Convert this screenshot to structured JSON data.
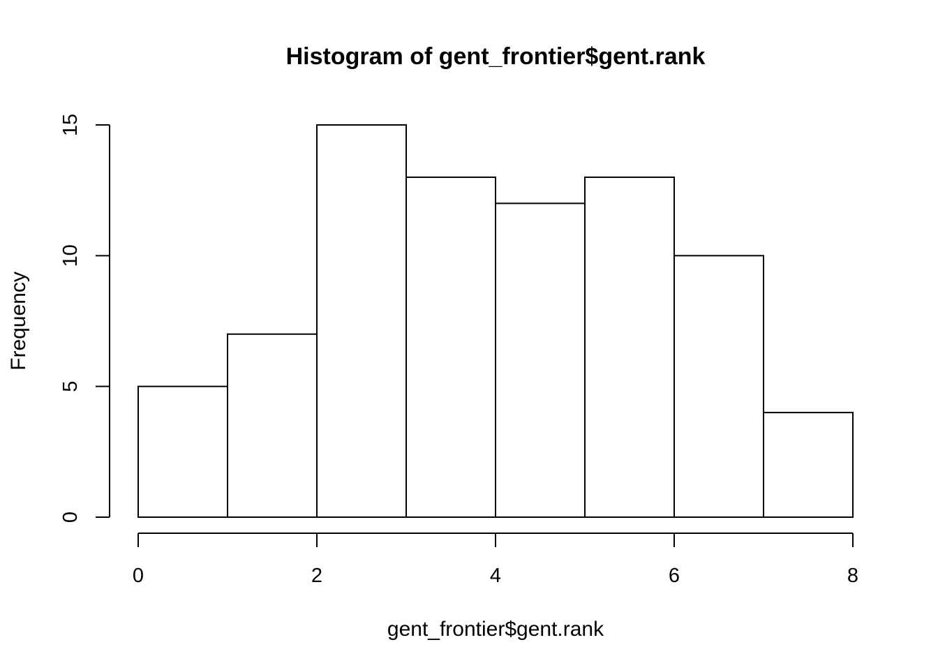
{
  "chart_data": {
    "type": "bar",
    "title": "Histogram of gent_frontier$gent.rank",
    "xlabel": "gent_frontier$gent.rank",
    "ylabel": "Frequency",
    "bins": [
      {
        "from": 0,
        "to": 1,
        "count": 5
      },
      {
        "from": 1,
        "to": 2,
        "count": 7
      },
      {
        "from": 2,
        "to": 3,
        "count": 15
      },
      {
        "from": 3,
        "to": 4,
        "count": 13
      },
      {
        "from": 4,
        "to": 5,
        "count": 12
      },
      {
        "from": 5,
        "to": 6,
        "count": 13
      },
      {
        "from": 6,
        "to": 7,
        "count": 10
      },
      {
        "from": 7,
        "to": 8,
        "count": 4
      }
    ],
    "xlim": [
      0,
      8
    ],
    "ylim": [
      0,
      15
    ],
    "x_ticks": [
      "0",
      "2",
      "4",
      "6",
      "8"
    ],
    "y_ticks": [
      "0",
      "5",
      "10",
      "15"
    ],
    "grid": false,
    "bar_fill": "#ffffff",
    "bar_stroke": "#000000"
  }
}
